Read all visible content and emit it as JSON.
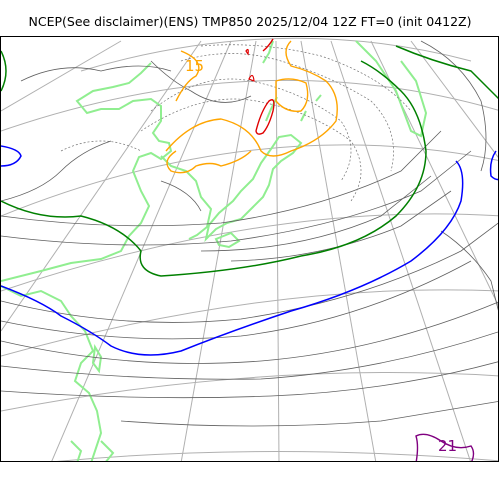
{
  "header": {
    "title": "NCEP(See disclaimer)(ENS) TMP850 2025/12/04 12Z FT=0 (init 0412Z)"
  },
  "map": {
    "contour_labels": [
      {
        "text": "15",
        "color": "#ffa500"
      },
      {
        "text": "21",
        "color": "#800080"
      }
    ],
    "colors": {
      "graticule": "#b0b0b0",
      "coastline": "#90ee90",
      "thin_isotherm": "#606060",
      "contour_green": "#008000",
      "contour_blue": "#0000ff",
      "contour_orange": "#ffa500",
      "contour_red": "#e00000",
      "contour_purple": "#800080"
    }
  }
}
